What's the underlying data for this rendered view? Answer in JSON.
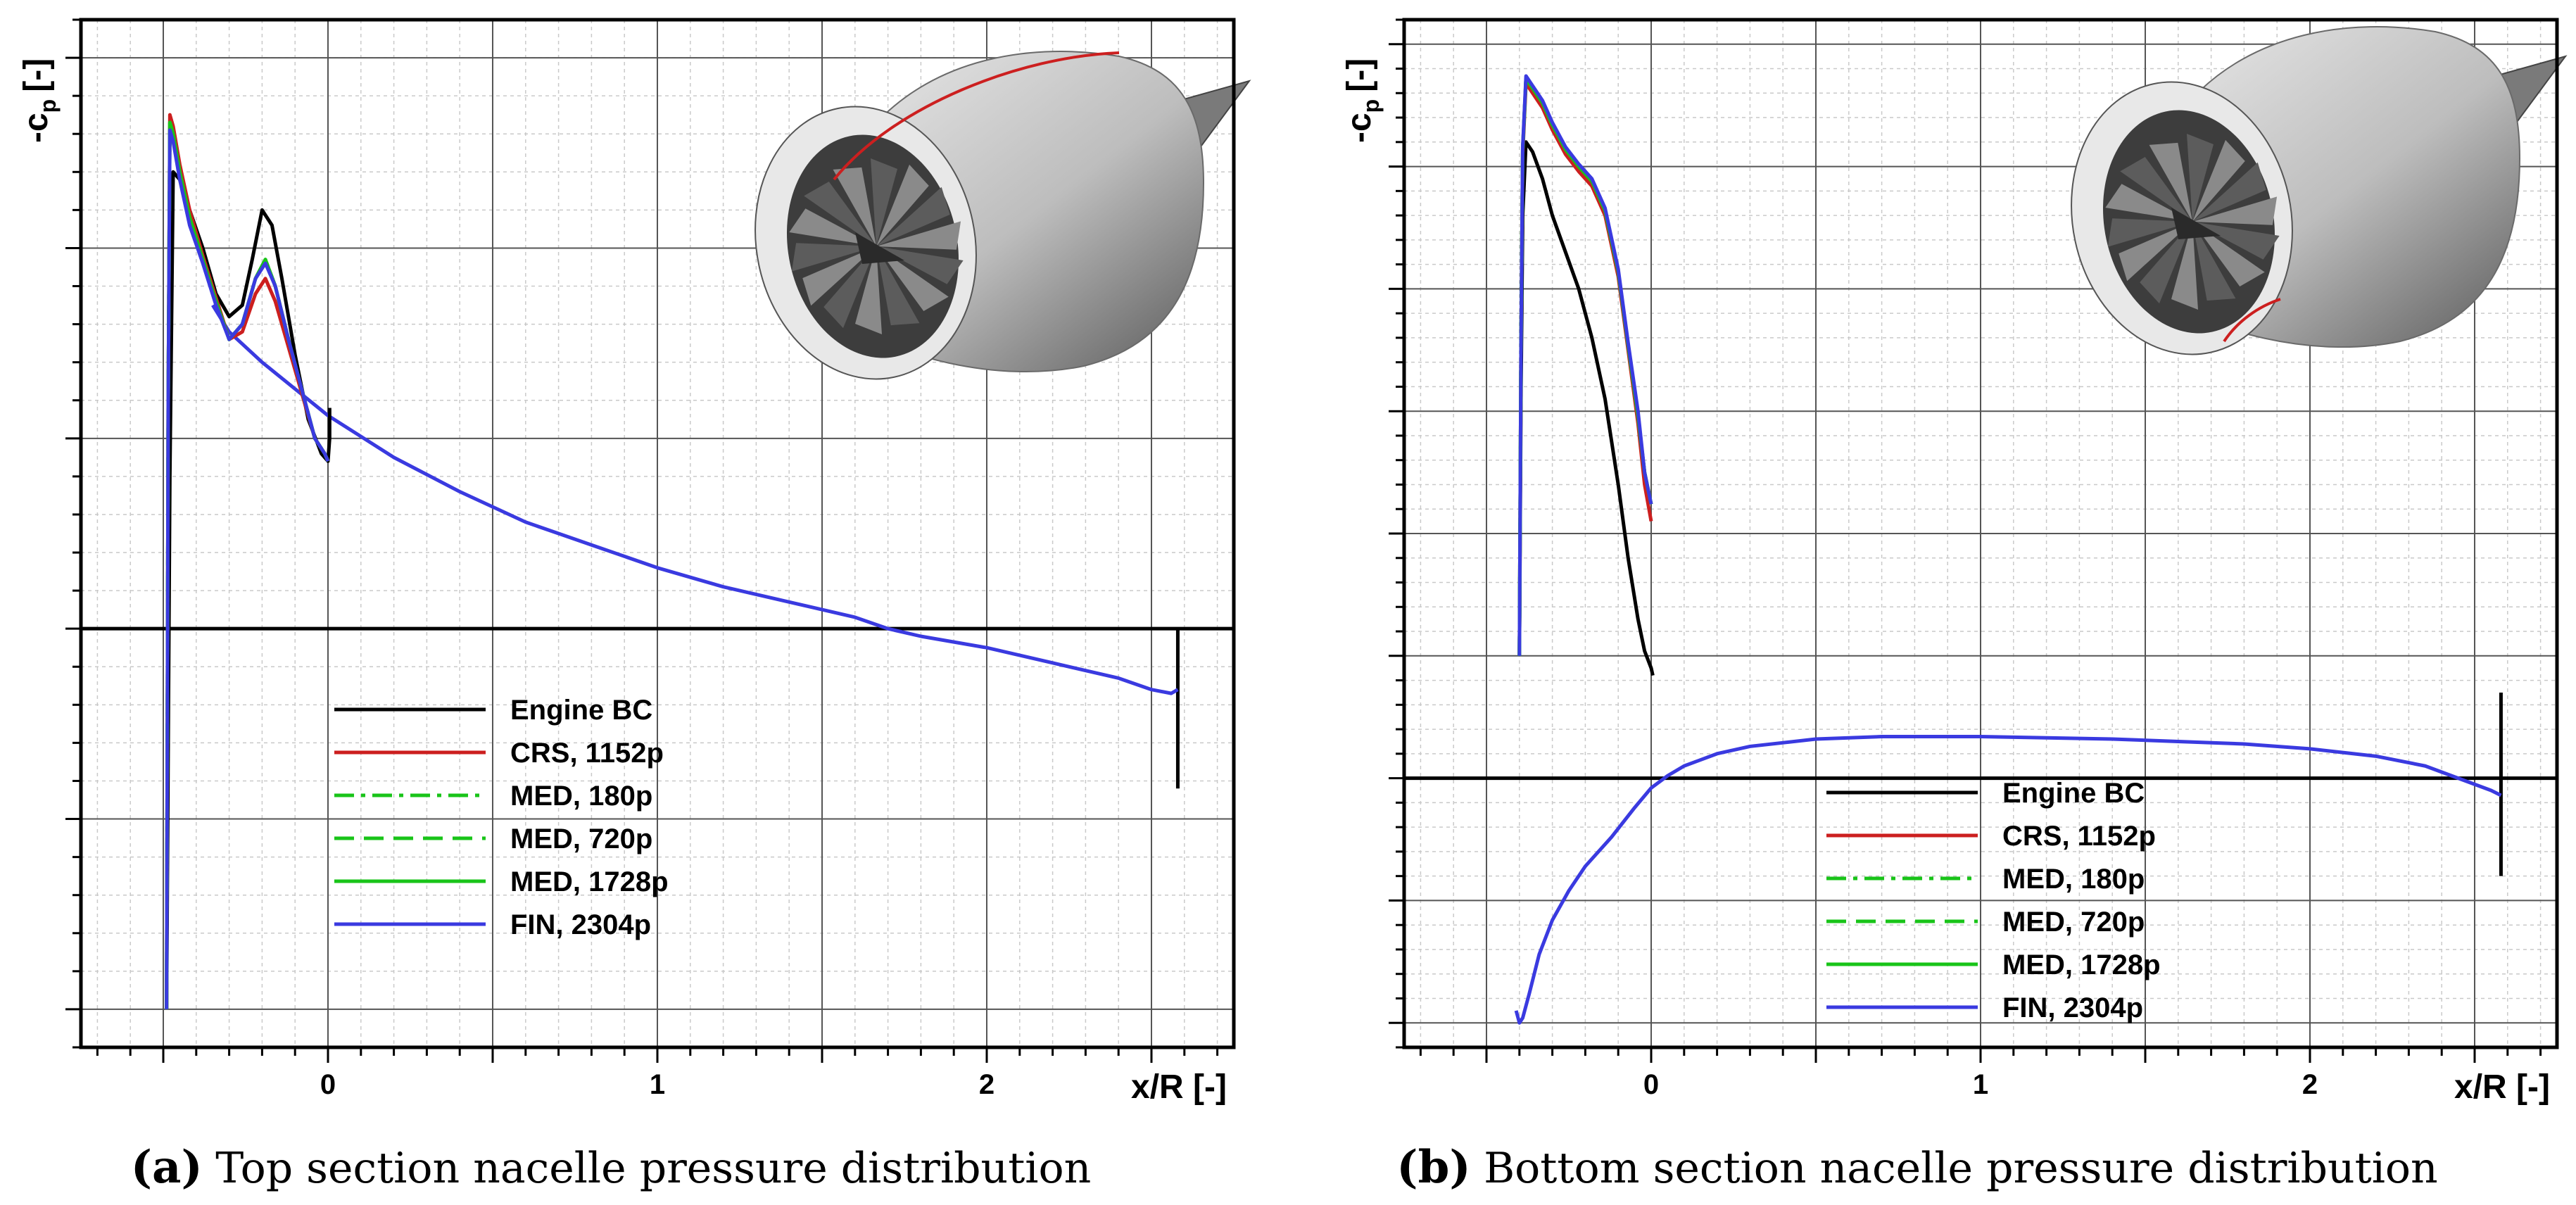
{
  "colors": {
    "engine_bc": "#000000",
    "crs": "#cc1f1f",
    "med": "#19c419",
    "fin": "#3a3ae0",
    "grid_major": "#555555",
    "grid_minor": "#c9c9c9",
    "nacelle_light": "#eeeeee",
    "nacelle_dark": "#5a5a5a"
  },
  "chart_data": [
    {
      "panel": "a",
      "type": "line",
      "caption_tag": "(a)",
      "caption": "Top section nacelle pressure distribution",
      "xlabel": "x/R [-]",
      "ylabel": "-c",
      "ylabel_sub": "p",
      "ylabel_unit": "[-]",
      "xlim": [
        -0.75,
        2.75
      ],
      "ylim": [
        -1.1,
        1.6
      ],
      "x_ticks": [
        0,
        1,
        2
      ],
      "y_tick_labels": false,
      "grid": true,
      "legend_position": "lower-center",
      "inset": "engine nacelle render with red section line on top",
      "series": [
        {
          "name": "Engine BC",
          "style": "solid",
          "color_key": "engine_bc",
          "x": [
            -0.49,
            -0.485,
            -0.48,
            -0.47,
            -0.45,
            -0.42,
            -0.38,
            -0.34,
            -0.3,
            -0.26,
            -0.23,
            -0.2,
            -0.17,
            -0.14,
            -0.1,
            -0.06,
            -0.02,
            0.0,
            0.005,
            0.005
          ],
          "y": [
            -1.0,
            -0.3,
            0.4,
            1.2,
            1.18,
            1.1,
            1.0,
            0.88,
            0.82,
            0.85,
            0.97,
            1.1,
            1.06,
            0.92,
            0.72,
            0.55,
            0.46,
            0.44,
            0.5,
            0.58
          ]
        },
        {
          "name": "CRS, 1152p",
          "style": "solid",
          "color_key": "crs",
          "x": [
            -0.49,
            -0.485,
            -0.48,
            -0.47,
            -0.45,
            -0.42,
            -0.38,
            -0.34,
            -0.3,
            -0.26,
            -0.22,
            -0.19,
            -0.16,
            -0.12,
            -0.08,
            -0.04,
            -0.01,
            0.0
          ],
          "y": [
            -1.0,
            0.6,
            1.35,
            1.32,
            1.22,
            1.1,
            0.98,
            0.87,
            0.76,
            0.78,
            0.88,
            0.92,
            0.86,
            0.74,
            0.62,
            0.5,
            0.46,
            0.44
          ]
        },
        {
          "name": "MED, 180p",
          "style": "dashdot",
          "color_key": "med",
          "x": [
            -0.49,
            -0.485,
            -0.48,
            -0.47,
            -0.45,
            -0.42,
            -0.38,
            -0.34,
            -0.3,
            -0.26,
            -0.22,
            -0.19,
            -0.16,
            -0.12,
            -0.08,
            -0.04,
            -0.01,
            0.0
          ],
          "y": [
            -1.0,
            0.6,
            1.33,
            1.3,
            1.2,
            1.08,
            0.97,
            0.86,
            0.76,
            0.8,
            0.92,
            0.97,
            0.9,
            0.76,
            0.63,
            0.5,
            0.46,
            0.44
          ]
        },
        {
          "name": "MED, 720p",
          "style": "dashed",
          "color_key": "med",
          "x": [
            -0.49,
            -0.485,
            -0.48,
            -0.47,
            -0.45,
            -0.42,
            -0.38,
            -0.34,
            -0.3,
            -0.26,
            -0.22,
            -0.19,
            -0.16,
            -0.12,
            -0.08,
            -0.04,
            -0.01,
            0.0
          ],
          "y": [
            -1.0,
            0.6,
            1.33,
            1.3,
            1.2,
            1.08,
            0.97,
            0.86,
            0.76,
            0.8,
            0.92,
            0.97,
            0.9,
            0.76,
            0.63,
            0.5,
            0.46,
            0.44
          ]
        },
        {
          "name": "MED, 1728p",
          "style": "solid",
          "color_key": "med",
          "x": [
            -0.49,
            -0.485,
            -0.48,
            -0.47,
            -0.45,
            -0.42,
            -0.38,
            -0.34,
            -0.3,
            -0.26,
            -0.22,
            -0.19,
            -0.16,
            -0.12,
            -0.08,
            -0.04,
            -0.01,
            0.0
          ],
          "y": [
            -1.0,
            0.6,
            1.33,
            1.3,
            1.2,
            1.08,
            0.97,
            0.86,
            0.76,
            0.8,
            0.92,
            0.97,
            0.9,
            0.76,
            0.63,
            0.5,
            0.46,
            0.44
          ]
        },
        {
          "name": "FIN, 2304p",
          "style": "solid",
          "color_key": "fin",
          "x": [
            -0.49,
            -0.485,
            -0.48,
            -0.47,
            -0.45,
            -0.42,
            -0.38,
            -0.34,
            -0.3,
            -0.26,
            -0.22,
            -0.19,
            -0.16,
            -0.12,
            -0.08,
            -0.04,
            -0.01,
            0.0
          ],
          "y": [
            -1.0,
            0.6,
            1.31,
            1.28,
            1.18,
            1.06,
            0.96,
            0.85,
            0.76,
            0.8,
            0.92,
            0.96,
            0.9,
            0.76,
            0.63,
            0.5,
            0.46,
            0.44
          ]
        },
        {
          "name": "Outer surface (all)",
          "style": "solid",
          "color_key": "fin",
          "legend": false,
          "x": [
            -0.35,
            -0.3,
            -0.2,
            -0.1,
            0.0,
            0.2,
            0.4,
            0.6,
            0.8,
            1.0,
            1.2,
            1.4,
            1.6,
            1.7,
            1.8,
            2.0,
            2.2,
            2.4,
            2.5,
            2.56,
            2.58
          ],
          "y": [
            0.85,
            0.78,
            0.7,
            0.63,
            0.56,
            0.45,
            0.36,
            0.28,
            0.22,
            0.16,
            0.11,
            0.07,
            0.03,
            0.0,
            -0.02,
            -0.05,
            -0.09,
            -0.13,
            -0.16,
            -0.17,
            -0.16
          ]
        },
        {
          "name": "Trailing edge spike",
          "style": "solid",
          "color_key": "engine_bc",
          "legend": false,
          "x": [
            2.58,
            2.58,
            2.58
          ],
          "y": [
            0.0,
            -0.2,
            -0.42
          ]
        }
      ]
    },
    {
      "panel": "b",
      "type": "line",
      "caption_tag": "(b)",
      "caption": "Bottom section nacelle pressure distribution",
      "xlabel": "x/R [-]",
      "ylabel": "-c",
      "ylabel_sub": "p",
      "ylabel_unit": "[-]",
      "xlim": [
        -0.75,
        2.75
      ],
      "ylim": [
        -1.1,
        3.1
      ],
      "x_ticks": [
        0,
        1,
        2
      ],
      "y_tick_labels": false,
      "grid": true,
      "legend_position": "lower-center",
      "inset": "engine nacelle render with red section line on bottom",
      "series": [
        {
          "name": "Engine BC",
          "style": "solid",
          "color_key": "engine_bc",
          "x": [
            -0.4,
            -0.395,
            -0.39,
            -0.38,
            -0.36,
            -0.33,
            -0.3,
            -0.26,
            -0.22,
            -0.18,
            -0.14,
            -0.1,
            -0.07,
            -0.04,
            -0.02,
            0.0,
            0.005
          ],
          "y": [
            0.5,
            1.6,
            2.3,
            2.6,
            2.56,
            2.45,
            2.3,
            2.15,
            2.0,
            1.8,
            1.55,
            1.2,
            0.9,
            0.65,
            0.52,
            0.45,
            0.42
          ]
        },
        {
          "name": "CRS, 1152p",
          "style": "solid",
          "color_key": "crs",
          "x": [
            -0.4,
            -0.395,
            -0.39,
            -0.38,
            -0.36,
            -0.33,
            -0.3,
            -0.26,
            -0.22,
            -0.18,
            -0.14,
            -0.1,
            -0.07,
            -0.04,
            -0.02,
            0.0
          ],
          "y": [
            0.5,
            1.8,
            2.55,
            2.84,
            2.8,
            2.74,
            2.65,
            2.55,
            2.48,
            2.42,
            2.3,
            2.05,
            1.75,
            1.45,
            1.2,
            1.05
          ]
        },
        {
          "name": "MED, 180p",
          "style": "dashdot",
          "color_key": "med",
          "x": [
            -0.4,
            -0.395,
            -0.39,
            -0.38,
            -0.36,
            -0.33,
            -0.3,
            -0.26,
            -0.22,
            -0.18,
            -0.14,
            -0.1,
            -0.07,
            -0.04,
            -0.02,
            0.0
          ],
          "y": [
            0.5,
            1.8,
            2.57,
            2.86,
            2.82,
            2.76,
            2.67,
            2.57,
            2.5,
            2.44,
            2.32,
            2.07,
            1.77,
            1.48,
            1.25,
            1.12
          ]
        },
        {
          "name": "MED, 720p",
          "style": "dashed",
          "color_key": "med",
          "x": [
            -0.4,
            -0.395,
            -0.39,
            -0.38,
            -0.36,
            -0.33,
            -0.3,
            -0.26,
            -0.22,
            -0.18,
            -0.14,
            -0.1,
            -0.07,
            -0.04,
            -0.02,
            0.0
          ],
          "y": [
            0.5,
            1.8,
            2.57,
            2.86,
            2.82,
            2.76,
            2.67,
            2.57,
            2.5,
            2.44,
            2.32,
            2.07,
            1.77,
            1.48,
            1.25,
            1.12
          ]
        },
        {
          "name": "MED, 1728p",
          "style": "solid",
          "color_key": "med",
          "x": [
            -0.4,
            -0.395,
            -0.39,
            -0.38,
            -0.36,
            -0.33,
            -0.3,
            -0.26,
            -0.22,
            -0.18,
            -0.14,
            -0.1,
            -0.07,
            -0.04,
            -0.02,
            0.0
          ],
          "y": [
            0.5,
            1.8,
            2.57,
            2.86,
            2.82,
            2.76,
            2.67,
            2.57,
            2.5,
            2.44,
            2.32,
            2.07,
            1.77,
            1.48,
            1.25,
            1.12
          ]
        },
        {
          "name": "FIN, 2304p",
          "style": "solid",
          "color_key": "fin",
          "x": [
            -0.4,
            -0.395,
            -0.39,
            -0.38,
            -0.36,
            -0.33,
            -0.3,
            -0.26,
            -0.22,
            -0.18,
            -0.14,
            -0.1,
            -0.07,
            -0.04,
            -0.02,
            0.0
          ],
          "y": [
            0.5,
            1.8,
            2.58,
            2.87,
            2.83,
            2.77,
            2.68,
            2.58,
            2.51,
            2.45,
            2.33,
            2.08,
            1.78,
            1.5,
            1.25,
            1.12
          ]
        },
        {
          "name": "Outer surface (all)",
          "style": "solid",
          "color_key": "fin",
          "legend": false,
          "x": [
            -0.41,
            -0.4,
            -0.39,
            -0.37,
            -0.34,
            -0.3,
            -0.25,
            -0.2,
            -0.12,
            -0.05,
            0.0,
            0.05,
            0.1,
            0.2,
            0.3,
            0.5,
            0.7,
            0.8,
            1.0,
            1.2,
            1.4,
            1.6,
            1.8,
            2.0,
            2.2,
            2.35,
            2.45,
            2.55,
            2.58
          ],
          "y": [
            -0.95,
            -1.0,
            -0.98,
            -0.88,
            -0.72,
            -0.58,
            -0.46,
            -0.36,
            -0.24,
            -0.12,
            -0.04,
            0.01,
            0.05,
            0.1,
            0.13,
            0.16,
            0.17,
            0.17,
            0.17,
            0.165,
            0.16,
            0.15,
            0.14,
            0.12,
            0.09,
            0.05,
            0.0,
            -0.05,
            -0.07
          ]
        },
        {
          "name": "Trailing edge spike",
          "style": "solid",
          "color_key": "engine_bc",
          "legend": false,
          "x": [
            2.58,
            2.58,
            2.58
          ],
          "y": [
            0.35,
            0.0,
            -0.4
          ]
        }
      ]
    }
  ]
}
